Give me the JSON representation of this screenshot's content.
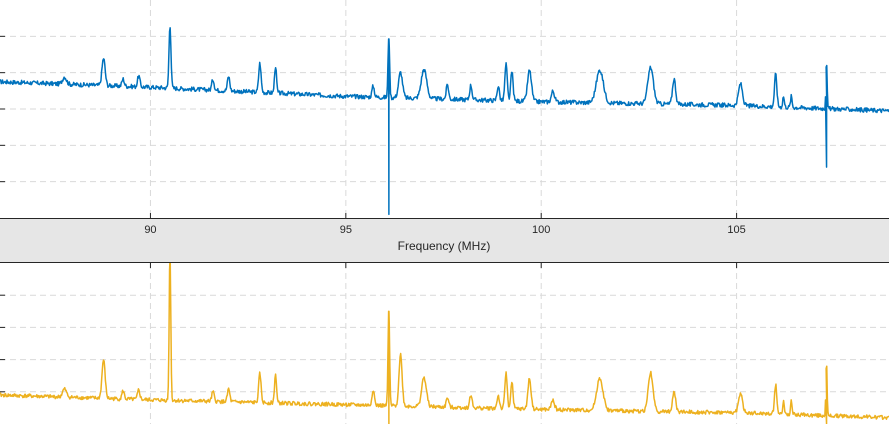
{
  "colors": {
    "top_series": "#0072bd",
    "bottom_series": "#edb120",
    "grid": "#d9d9d9",
    "axes": "#262626",
    "background": "#e6e6e6"
  },
  "xaxis": {
    "label": "Frequency (MHz)",
    "ticks": [
      "90",
      "95",
      "100",
      "105"
    ],
    "xlim": [
      86.15,
      108.9
    ]
  },
  "chart_data": [
    {
      "type": "line",
      "title": "",
      "xlabel": "Frequency (MHz)",
      "ylabel": "",
      "xlim": [
        86.15,
        108.9
      ],
      "ylim": [
        -6,
        0
      ],
      "grid": true,
      "baseline": {
        "x": [
          86.15,
          90,
          95,
          100,
          105,
          108.9
        ],
        "y": [
          -2.25,
          -2.4,
          -2.65,
          -2.8,
          -2.9,
          -3.05
        ]
      },
      "peaks": [
        {
          "x": 87.8,
          "height": 0.2,
          "width": 0.05
        },
        {
          "x": 88.8,
          "height": 0.75,
          "width": 0.04
        },
        {
          "x": 89.3,
          "height": 0.2,
          "width": 0.03
        },
        {
          "x": 89.7,
          "height": 0.3,
          "width": 0.03
        },
        {
          "x": 90.5,
          "height": 1.75,
          "width": 0.025
        },
        {
          "x": 91.6,
          "height": 0.3,
          "width": 0.03
        },
        {
          "x": 92.0,
          "height": 0.4,
          "width": 0.03
        },
        {
          "x": 92.8,
          "height": 0.8,
          "width": 0.03
        },
        {
          "x": 93.2,
          "height": 0.75,
          "width": 0.025
        },
        {
          "x": 95.7,
          "height": 0.3,
          "width": 0.03
        },
        {
          "x": 96.1,
          "height": 1.7,
          "width": 0.02
        },
        {
          "x": 96.4,
          "height": 0.7,
          "width": 0.05
        },
        {
          "x": 97.0,
          "height": 0.8,
          "width": 0.07
        },
        {
          "x": 97.6,
          "height": 0.4,
          "width": 0.03
        },
        {
          "x": 98.2,
          "height": 0.4,
          "width": 0.03
        },
        {
          "x": 98.9,
          "height": 0.4,
          "width": 0.03
        },
        {
          "x": 99.1,
          "height": 1.0,
          "width": 0.03
        },
        {
          "x": 99.25,
          "height": 0.8,
          "width": 0.03
        },
        {
          "x": 99.7,
          "height": 0.85,
          "width": 0.05
        },
        {
          "x": 100.3,
          "height": 0.3,
          "width": 0.04
        },
        {
          "x": 101.5,
          "height": 0.9,
          "width": 0.09
        },
        {
          "x": 102.8,
          "height": 1.0,
          "width": 0.07
        },
        {
          "x": 103.4,
          "height": 0.7,
          "width": 0.04
        },
        {
          "x": 105.1,
          "height": 0.6,
          "width": 0.05
        },
        {
          "x": 106.0,
          "height": 0.9,
          "width": 0.03
        },
        {
          "x": 106.2,
          "height": 0.3,
          "width": 0.02
        },
        {
          "x": 106.4,
          "height": 0.3,
          "width": 0.02
        },
        {
          "x": 107.3,
          "height": 1.4,
          "width": 0.015
        }
      ],
      "spikes": [
        {
          "x": 96.1,
          "min": -5.9
        },
        {
          "x": 107.3,
          "min": -4.6
        }
      ]
    },
    {
      "type": "line",
      "title": "",
      "xlabel": "",
      "ylabel": "",
      "xlim": [
        86.15,
        108.9
      ],
      "ylim": [
        -5,
        0
      ],
      "grid": true,
      "baseline": {
        "x": [
          86.15,
          90,
          95,
          100,
          105,
          108.9
        ],
        "y": [
          -4.1,
          -4.25,
          -4.4,
          -4.55,
          -4.65,
          -4.8
        ]
      },
      "peaks": [
        {
          "x": 87.8,
          "height": 0.25,
          "width": 0.05
        },
        {
          "x": 88.8,
          "height": 1.2,
          "width": 0.04
        },
        {
          "x": 89.3,
          "height": 0.25,
          "width": 0.03
        },
        {
          "x": 89.7,
          "height": 0.3,
          "width": 0.03
        },
        {
          "x": 90.5,
          "height": 4.7,
          "width": 0.02
        },
        {
          "x": 91.6,
          "height": 0.3,
          "width": 0.03
        },
        {
          "x": 92.0,
          "height": 0.4,
          "width": 0.03
        },
        {
          "x": 92.8,
          "height": 0.9,
          "width": 0.03
        },
        {
          "x": 93.2,
          "height": 0.9,
          "width": 0.025
        },
        {
          "x": 95.7,
          "height": 0.5,
          "width": 0.03
        },
        {
          "x": 96.1,
          "height": 3.0,
          "width": 0.02
        },
        {
          "x": 96.4,
          "height": 1.6,
          "width": 0.04
        },
        {
          "x": 97.0,
          "height": 0.9,
          "width": 0.06
        },
        {
          "x": 97.6,
          "height": 0.3,
          "width": 0.03
        },
        {
          "x": 98.2,
          "height": 0.4,
          "width": 0.03
        },
        {
          "x": 98.9,
          "height": 0.4,
          "width": 0.03
        },
        {
          "x": 99.1,
          "height": 1.1,
          "width": 0.03
        },
        {
          "x": 99.25,
          "height": 0.8,
          "width": 0.03
        },
        {
          "x": 99.7,
          "height": 0.95,
          "width": 0.04
        },
        {
          "x": 100.3,
          "height": 0.3,
          "width": 0.04
        },
        {
          "x": 101.5,
          "height": 1.0,
          "width": 0.08
        },
        {
          "x": 102.8,
          "height": 1.2,
          "width": 0.06
        },
        {
          "x": 103.4,
          "height": 0.6,
          "width": 0.04
        },
        {
          "x": 105.1,
          "height": 0.6,
          "width": 0.05
        },
        {
          "x": 106.0,
          "height": 0.9,
          "width": 0.03
        },
        {
          "x": 106.2,
          "height": 0.4,
          "width": 0.02
        },
        {
          "x": 106.4,
          "height": 0.4,
          "width": 0.02
        },
        {
          "x": 107.3,
          "height": 1.7,
          "width": 0.015
        }
      ],
      "spikes": [
        {
          "x": 96.1,
          "min": -5.0
        },
        {
          "x": 107.3,
          "min": -5.0
        }
      ]
    }
  ]
}
